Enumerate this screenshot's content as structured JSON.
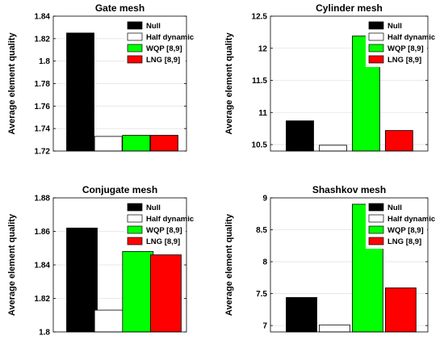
{
  "chart_data": [
    {
      "type": "bar",
      "title": "Gate mesh",
      "ylabel": "Average element quality",
      "xlabel": "",
      "categories": [
        "Null",
        "Half dynamic",
        "WQP [8,9]",
        "LNG [8,9]"
      ],
      "values": [
        1.825,
        1.733,
        1.734,
        1.734
      ],
      "ylim": [
        1.72,
        1.84
      ],
      "yticks": [
        "1.72",
        "1.74",
        "1.76",
        "1.78",
        "1.8",
        "1.82",
        "1.84"
      ],
      "colors": [
        "#000000",
        "#ffffff",
        "#00ff00",
        "#ff0000"
      ],
      "legend": "top-right",
      "grid": true
    },
    {
      "type": "bar",
      "title": "Cylinder mesh",
      "ylabel": "Average element quality",
      "xlabel": "",
      "categories": [
        "Null",
        "Half dynamic",
        "WQP [8,9]",
        "LNG [8,9]"
      ],
      "values": [
        10.87,
        10.49,
        12.19,
        10.72
      ],
      "ylim": [
        10.4,
        12.5
      ],
      "yticks": [
        "10.5",
        "11",
        "11.5",
        "12",
        "12.5"
      ],
      "colors": [
        "#000000",
        "#ffffff",
        "#00ff00",
        "#ff0000"
      ],
      "legend": "top-right",
      "grid": true
    },
    {
      "type": "bar",
      "title": "Conjugate mesh",
      "ylabel": "Average element quality",
      "xlabel": "",
      "categories": [
        "Null",
        "Half dynamic",
        "WQP [8,9]",
        "LNG [8,9]"
      ],
      "values": [
        1.862,
        1.813,
        1.848,
        1.846
      ],
      "ylim": [
        1.8,
        1.88
      ],
      "yticks": [
        "1.8",
        "1.82",
        "1.84",
        "1.86",
        "1.88"
      ],
      "colors": [
        "#000000",
        "#ffffff",
        "#00ff00",
        "#ff0000"
      ],
      "legend": "top-right",
      "grid": true
    },
    {
      "type": "bar",
      "title": "Shashkov mesh",
      "ylabel": "Average element quality",
      "xlabel": "",
      "categories": [
        "Null",
        "Half dynamic",
        "WQP [8,9]",
        "LNG [8,9]"
      ],
      "values": [
        7.44,
        7.01,
        8.9,
        7.59
      ],
      "ylim": [
        6.9,
        9.0
      ],
      "yticks": [
        "7",
        "7.5",
        "8",
        "8.5",
        "9"
      ],
      "colors": [
        "#000000",
        "#ffffff",
        "#00ff00",
        "#ff0000"
      ],
      "legend": "top-right",
      "grid": true
    }
  ]
}
